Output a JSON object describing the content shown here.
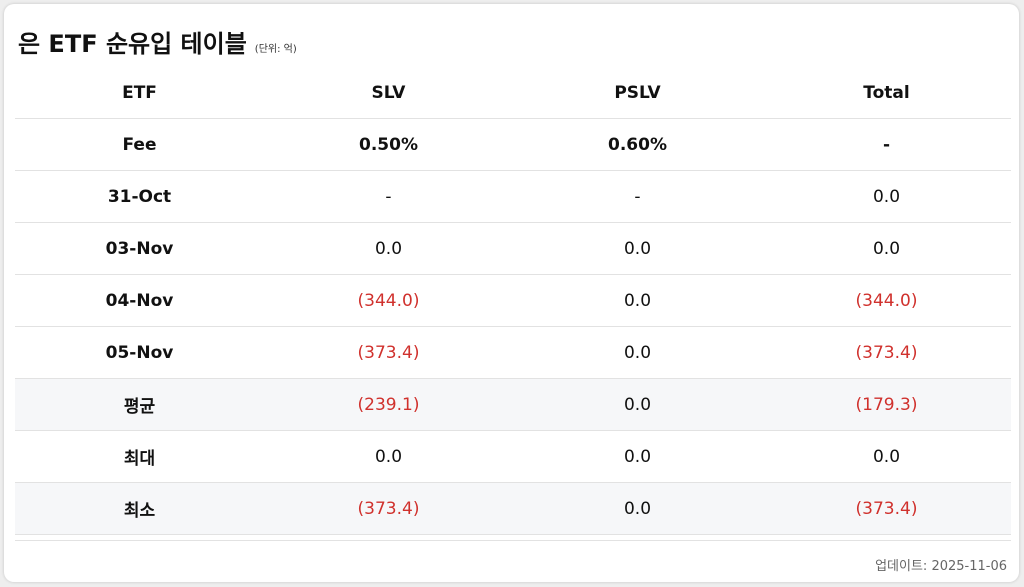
{
  "title": "은 ETF 순유입 테이블",
  "unit": "(단위: 억)",
  "table": {
    "headers": [
      "ETF",
      "SLV",
      "PSLV",
      "Total"
    ],
    "rows": [
      {
        "label": "Fee",
        "values": [
          "0.50%",
          "0.60%",
          "-"
        ]
      },
      {
        "label": "31-Oct",
        "values": [
          "-",
          "-",
          "0.0"
        ]
      },
      {
        "label": "03-Nov",
        "values": [
          "0.0",
          "0.0",
          "0.0"
        ]
      },
      {
        "label": "04-Nov",
        "values": [
          "(344.0)",
          "0.0",
          "(344.0)"
        ]
      },
      {
        "label": "05-Nov",
        "values": [
          "(373.4)",
          "0.0",
          "(373.4)"
        ]
      },
      {
        "label": "평균",
        "values": [
          "(239.1)",
          "0.0",
          "(179.3)"
        ]
      },
      {
        "label": "최대",
        "values": [
          "0.0",
          "0.0",
          "0.0"
        ]
      },
      {
        "label": "최소",
        "values": [
          "(373.4)",
          "0.0",
          "(373.4)"
        ]
      }
    ]
  },
  "updated": "업데이트: 2025-11-06",
  "colors": {
    "negative": "#d0312d",
    "stat_row_bg": "#f6f7f9"
  }
}
